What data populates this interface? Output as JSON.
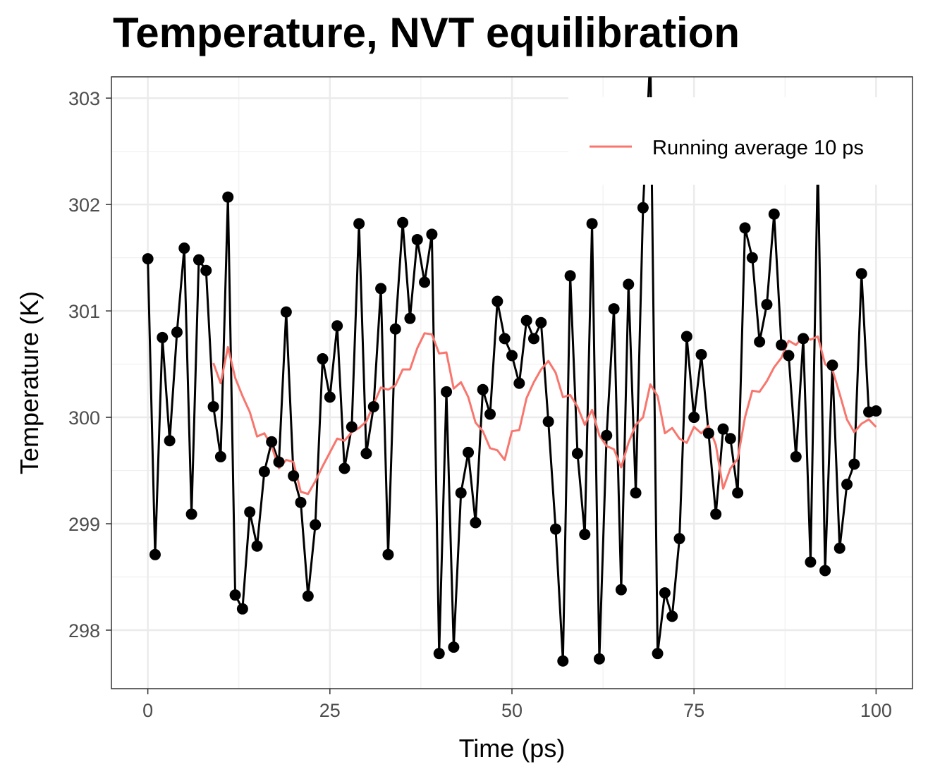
{
  "chart_data": {
    "type": "line",
    "title": "Temperature, NVT equilibration",
    "xlabel": "Time (ps)",
    "ylabel": "Temperature (K)",
    "xlim": [
      -5,
      105
    ],
    "ylim": [
      297.45,
      303.2
    ],
    "x_ticks": [
      0,
      25,
      50,
      75,
      100
    ],
    "y_ticks": [
      298,
      299,
      300,
      301,
      302,
      303
    ],
    "x_tick_labels": [
      "0",
      "25",
      "50",
      "75",
      "100"
    ],
    "y_tick_labels": [
      "298",
      "299",
      "300",
      "301",
      "302",
      "303"
    ],
    "grid": true,
    "legend_position": "top-right",
    "series": [
      {
        "line_color": "#000000",
        "marker": "circle",
        "x": [
          0,
          1,
          2,
          3,
          4,
          5,
          6,
          7,
          8,
          9,
          10,
          11,
          12,
          13,
          14,
          15,
          16,
          17,
          18,
          19,
          20,
          21,
          22,
          23,
          24,
          25,
          26,
          27,
          28,
          29,
          30,
          31,
          32,
          33,
          34,
          35,
          36,
          37,
          38,
          39,
          40,
          41,
          42,
          43,
          44,
          45,
          46,
          47,
          48,
          49,
          50,
          51,
          52,
          53,
          54,
          55,
          56,
          57,
          58,
          59,
          60,
          61,
          62,
          63,
          64,
          65,
          66,
          67,
          68,
          69,
          70,
          71,
          72,
          73,
          74,
          75,
          76,
          77,
          78,
          79,
          80,
          81,
          82,
          83,
          84,
          85,
          86,
          87,
          88,
          89,
          90,
          91,
          92,
          93,
          94,
          95,
          96,
          97,
          98,
          99,
          100
        ],
        "values": [
          301.49,
          298.71,
          300.75,
          299.78,
          300.8,
          301.59,
          299.09,
          301.48,
          301.38,
          300.1,
          299.63,
          302.07,
          298.33,
          298.2,
          299.11,
          298.79,
          299.49,
          299.77,
          299.58,
          300.99,
          299.45,
          299.2,
          298.32,
          298.99,
          300.55,
          300.19,
          300.86,
          299.52,
          299.91,
          301.82,
          299.66,
          300.1,
          301.21,
          298.71,
          300.83,
          301.83,
          300.93,
          301.67,
          301.27,
          301.72,
          297.78,
          300.24,
          297.84,
          299.29,
          299.67,
          299.01,
          300.26,
          300.03,
          301.09,
          300.74,
          300.58,
          300.32,
          300.91,
          300.74,
          300.89,
          299.96,
          298.95,
          297.71,
          301.33,
          299.66,
          298.9,
          301.82,
          297.73,
          299.83,
          301.02,
          298.38,
          301.25,
          299.29,
          301.97,
          303.4,
          297.78,
          298.35,
          298.13,
          298.86,
          300.76,
          300.0,
          300.59,
          299.85,
          299.09,
          299.89,
          299.8,
          299.29,
          301.78,
          301.5,
          300.71,
          301.06,
          301.91,
          300.68,
          300.58,
          299.63,
          300.74,
          298.64,
          302.4,
          298.56,
          300.49,
          298.77,
          299.37,
          299.56,
          301.35,
          300.05,
          300.06
        ]
      },
      {
        "name": "Running average 10 ps",
        "line_color": "#F8766D",
        "x": [
          9,
          10,
          11,
          12,
          13,
          14,
          15,
          16,
          17,
          18,
          19,
          20,
          21,
          22,
          23,
          24,
          25,
          26,
          27,
          28,
          29,
          30,
          31,
          32,
          33,
          34,
          35,
          36,
          37,
          38,
          39,
          40,
          41,
          42,
          43,
          44,
          45,
          46,
          47,
          48,
          49,
          50,
          51,
          52,
          53,
          54,
          55,
          56,
          57,
          58,
          59,
          60,
          61,
          62,
          63,
          64,
          65,
          66,
          67,
          68,
          69,
          70,
          71,
          72,
          73,
          74,
          75,
          76,
          77,
          78,
          79,
          80,
          81,
          82,
          83,
          84,
          85,
          86,
          87,
          88,
          89,
          90,
          91,
          92,
          93,
          94,
          95,
          96,
          97,
          98,
          99,
          100
        ],
        "values": [
          300.51,
          300.32,
          300.66,
          300.37,
          300.2,
          300.05,
          299.82,
          299.85,
          299.73,
          299.52,
          299.6,
          299.58,
          299.3,
          299.28,
          299.4,
          299.54,
          299.67,
          299.8,
          299.78,
          299.86,
          299.9,
          299.96,
          300.12,
          300.28,
          300.26,
          300.3,
          300.45,
          300.45,
          300.65,
          300.79,
          300.78,
          300.6,
          300.61,
          300.27,
          300.33,
          300.19,
          299.95,
          299.87,
          299.71,
          299.69,
          299.6,
          299.87,
          299.88,
          300.18,
          300.33,
          300.45,
          300.53,
          300.42,
          300.19,
          300.21,
          300.1,
          299.93,
          300.07,
          299.83,
          299.73,
          299.7,
          299.53,
          299.76,
          299.93,
          300.0,
          300.31,
          300.2,
          299.85,
          299.9,
          299.8,
          299.76,
          299.91,
          299.85,
          299.92,
          299.74,
          299.33,
          299.52,
          299.61,
          300.0,
          300.25,
          300.24,
          300.34,
          300.47,
          300.56,
          300.72,
          300.68,
          300.76,
          300.73,
          300.76,
          300.5,
          300.45,
          300.22,
          299.98,
          299.86,
          299.94,
          299.98,
          299.91
        ]
      }
    ]
  }
}
